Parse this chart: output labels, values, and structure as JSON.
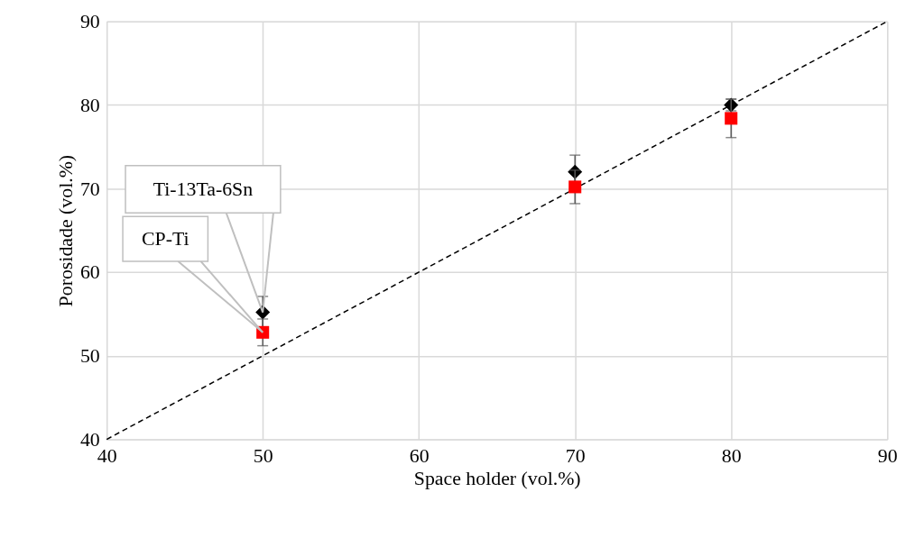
{
  "chart_data": {
    "type": "scatter",
    "xlabel": "Space holder (vol.%)",
    "ylabel": "Porosidade (vol.%)",
    "xlim": [
      40,
      90
    ],
    "ylim": [
      40,
      90
    ],
    "xticks": [
      40,
      50,
      60,
      70,
      80,
      90
    ],
    "yticks": [
      40,
      50,
      60,
      70,
      80,
      90
    ],
    "grid": true,
    "series": [
      {
        "type": "line",
        "x": [
          40,
          90
        ],
        "values": [
          40,
          90
        ],
        "color": "#000000",
        "line_style": "dashed",
        "marker": "none"
      },
      {
        "name": "Ti-13Ta-6Sn",
        "x": [
          50,
          70,
          80
        ],
        "values": [
          55.2,
          72.0,
          80.0
        ],
        "errors": [
          1.9,
          2.0,
          0.7
        ],
        "color": "#000000",
        "marker": "diamond"
      },
      {
        "name": "CP-Ti",
        "x": [
          50,
          70,
          80
        ],
        "values": [
          52.8,
          70.2,
          78.4
        ],
        "errors": [
          1.6,
          2.0,
          2.3
        ],
        "color": "#ff0000",
        "marker": "square"
      }
    ]
  }
}
